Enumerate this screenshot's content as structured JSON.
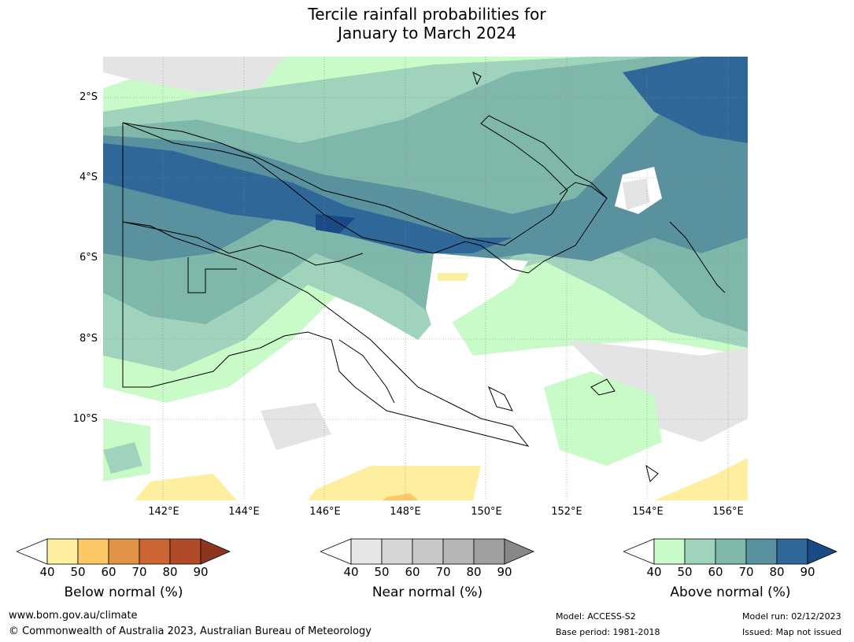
{
  "title_line1": "Tercile rainfall probabilities for",
  "title_line2": "January to March 2024",
  "lat_labels": [
    "2°S",
    "4°S",
    "6°S",
    "8°S",
    "10°S"
  ],
  "lon_labels": [
    "142°E",
    "144°E",
    "146°E",
    "148°E",
    "150°E",
    "152°E",
    "154°E",
    "156°E"
  ],
  "colorbars": [
    {
      "title": "Below normal (%)",
      "ticks": [
        "40",
        "50",
        "60",
        "70",
        "80",
        "90"
      ],
      "colors": [
        "#ffffff",
        "#fdeea0",
        "#fcc765",
        "#e29446",
        "#cc6433",
        "#b04a27",
        "#8c3520"
      ]
    },
    {
      "title": "Near normal (%)",
      "ticks": [
        "40",
        "50",
        "60",
        "70",
        "80",
        "90"
      ],
      "colors": [
        "#ffffff",
        "#e6e6e6",
        "#d6d6d6",
        "#c8c8c8",
        "#b6b6b6",
        "#a0a0a0",
        "#888888"
      ]
    },
    {
      "title": "Above normal (%)",
      "ticks": [
        "40",
        "50",
        "60",
        "70",
        "80",
        "90"
      ],
      "colors": [
        "#ffffff",
        "#c8fbc8",
        "#9fd3bc",
        "#7fb7ab",
        "#5a919e",
        "#2f6798",
        "#1a4a86"
      ]
    }
  ],
  "footer": {
    "website": "www.bom.gov.au/climate",
    "copyright": "© Commonwealth of Australia 2023, Australian Bureau of Meteorology",
    "model": "Model: ACCESS-S2",
    "base_period": "Base period: 1981-2018",
    "model_run": "Model run: 02/12/2023",
    "issued": "Issued: Map not issued"
  }
}
